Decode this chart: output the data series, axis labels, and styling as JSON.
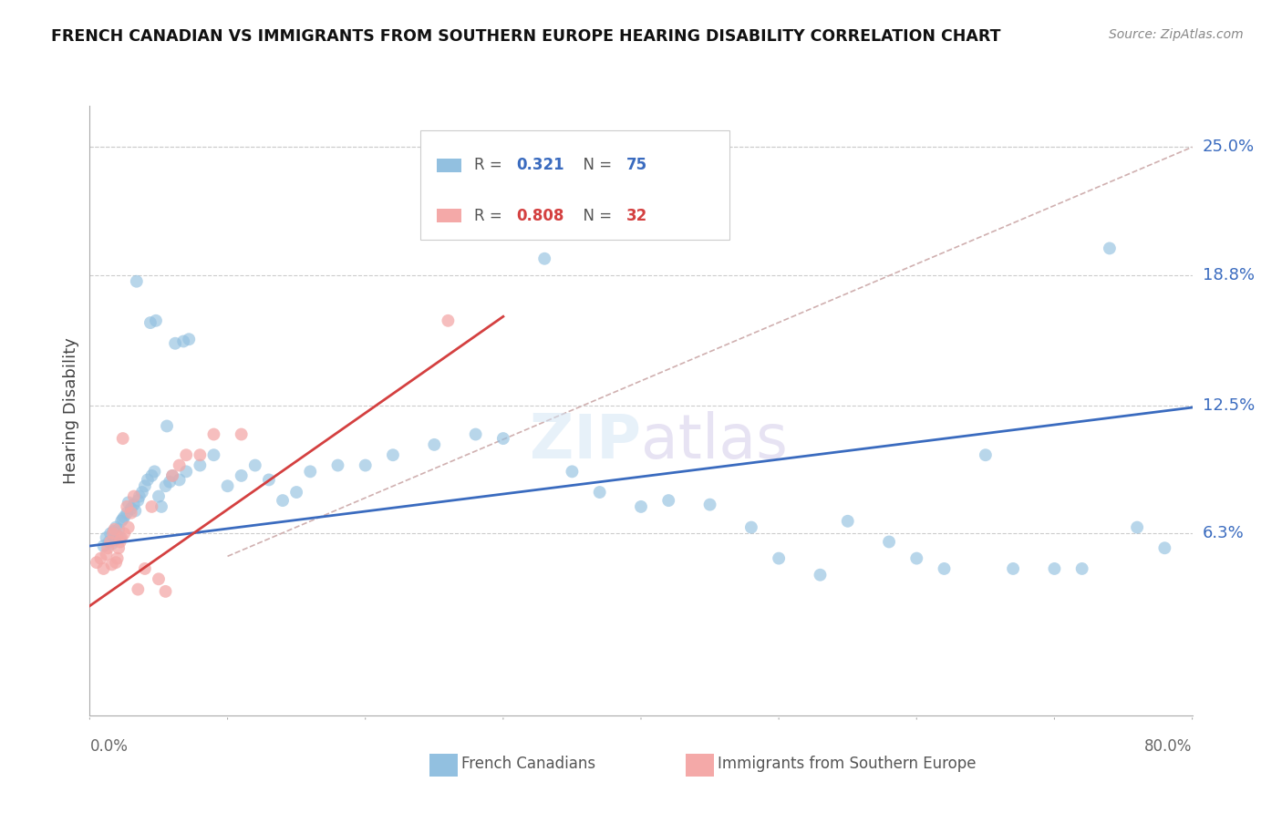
{
  "title": "FRENCH CANADIAN VS IMMIGRANTS FROM SOUTHERN EUROPE HEARING DISABILITY CORRELATION CHART",
  "source": "Source: ZipAtlas.com",
  "ylabel": "Hearing Disability",
  "ytick_labels": [
    "6.3%",
    "12.5%",
    "18.8%",
    "25.0%"
  ],
  "ytick_values": [
    0.063,
    0.125,
    0.188,
    0.25
  ],
  "xlim": [
    0.0,
    0.8
  ],
  "ylim": [
    -0.025,
    0.27
  ],
  "blue_R": "0.321",
  "blue_N": "75",
  "pink_R": "0.808",
  "pink_N": "32",
  "blue_color": "#92c0e0",
  "pink_color": "#f4a9a8",
  "blue_line_color": "#3a6bbf",
  "pink_line_color": "#d44040",
  "dashed_line_color": "#d0b0b0",
  "legend_label_blue": "French Canadians",
  "legend_label_pink": "Immigrants from Southern Europe",
  "blue_scatter_x": [
    0.01,
    0.012,
    0.014,
    0.015,
    0.016,
    0.017,
    0.018,
    0.019,
    0.02,
    0.021,
    0.022,
    0.023,
    0.024,
    0.025,
    0.027,
    0.028,
    0.03,
    0.032,
    0.033,
    0.034,
    0.035,
    0.036,
    0.038,
    0.04,
    0.042,
    0.044,
    0.045,
    0.047,
    0.048,
    0.05,
    0.052,
    0.055,
    0.056,
    0.058,
    0.06,
    0.062,
    0.065,
    0.068,
    0.07,
    0.072,
    0.08,
    0.09,
    0.1,
    0.11,
    0.12,
    0.13,
    0.14,
    0.15,
    0.16,
    0.18,
    0.2,
    0.22,
    0.25,
    0.28,
    0.3,
    0.33,
    0.35,
    0.37,
    0.4,
    0.42,
    0.45,
    0.48,
    0.5,
    0.53,
    0.55,
    0.58,
    0.6,
    0.62,
    0.65,
    0.67,
    0.7,
    0.72,
    0.74,
    0.76,
    0.78
  ],
  "blue_scatter_y": [
    0.057,
    0.061,
    0.059,
    0.063,
    0.058,
    0.064,
    0.06,
    0.066,
    0.062,
    0.065,
    0.061,
    0.069,
    0.07,
    0.071,
    0.073,
    0.078,
    0.075,
    0.077,
    0.074,
    0.185,
    0.079,
    0.081,
    0.083,
    0.086,
    0.089,
    0.165,
    0.091,
    0.093,
    0.166,
    0.081,
    0.076,
    0.086,
    0.115,
    0.088,
    0.091,
    0.155,
    0.089,
    0.156,
    0.093,
    0.157,
    0.096,
    0.101,
    0.086,
    0.091,
    0.096,
    0.089,
    0.079,
    0.083,
    0.093,
    0.096,
    0.096,
    0.101,
    0.106,
    0.111,
    0.109,
    0.196,
    0.093,
    0.083,
    0.076,
    0.079,
    0.077,
    0.066,
    0.051,
    0.043,
    0.069,
    0.059,
    0.051,
    0.046,
    0.101,
    0.046,
    0.046,
    0.046,
    0.201,
    0.066,
    0.056
  ],
  "pink_scatter_x": [
    0.005,
    0.008,
    0.01,
    0.012,
    0.013,
    0.015,
    0.016,
    0.017,
    0.018,
    0.019,
    0.02,
    0.021,
    0.022,
    0.023,
    0.024,
    0.025,
    0.027,
    0.028,
    0.03,
    0.032,
    0.035,
    0.04,
    0.045,
    0.05,
    0.055,
    0.06,
    0.065,
    0.07,
    0.08,
    0.09,
    0.11,
    0.26
  ],
  "pink_scatter_y": [
    0.049,
    0.051,
    0.046,
    0.053,
    0.056,
    0.059,
    0.048,
    0.063,
    0.065,
    0.049,
    0.051,
    0.056,
    0.059,
    0.061,
    0.109,
    0.063,
    0.076,
    0.066,
    0.073,
    0.081,
    0.036,
    0.046,
    0.076,
    0.041,
    0.035,
    0.091,
    0.096,
    0.101,
    0.101,
    0.111,
    0.111,
    0.166
  ],
  "blue_trend_x": [
    0.0,
    0.8
  ],
  "blue_trend_y": [
    0.057,
    0.124
  ],
  "pink_trend_x": [
    0.0,
    0.3
  ],
  "pink_trend_y": [
    0.028,
    0.168
  ],
  "dashed_line_x": [
    0.1,
    0.8
  ],
  "dashed_line_y": [
    0.052,
    0.25
  ],
  "background_color": "#ffffff",
  "grid_color": "#cccccc",
  "tick_color": "#aaaaaa"
}
